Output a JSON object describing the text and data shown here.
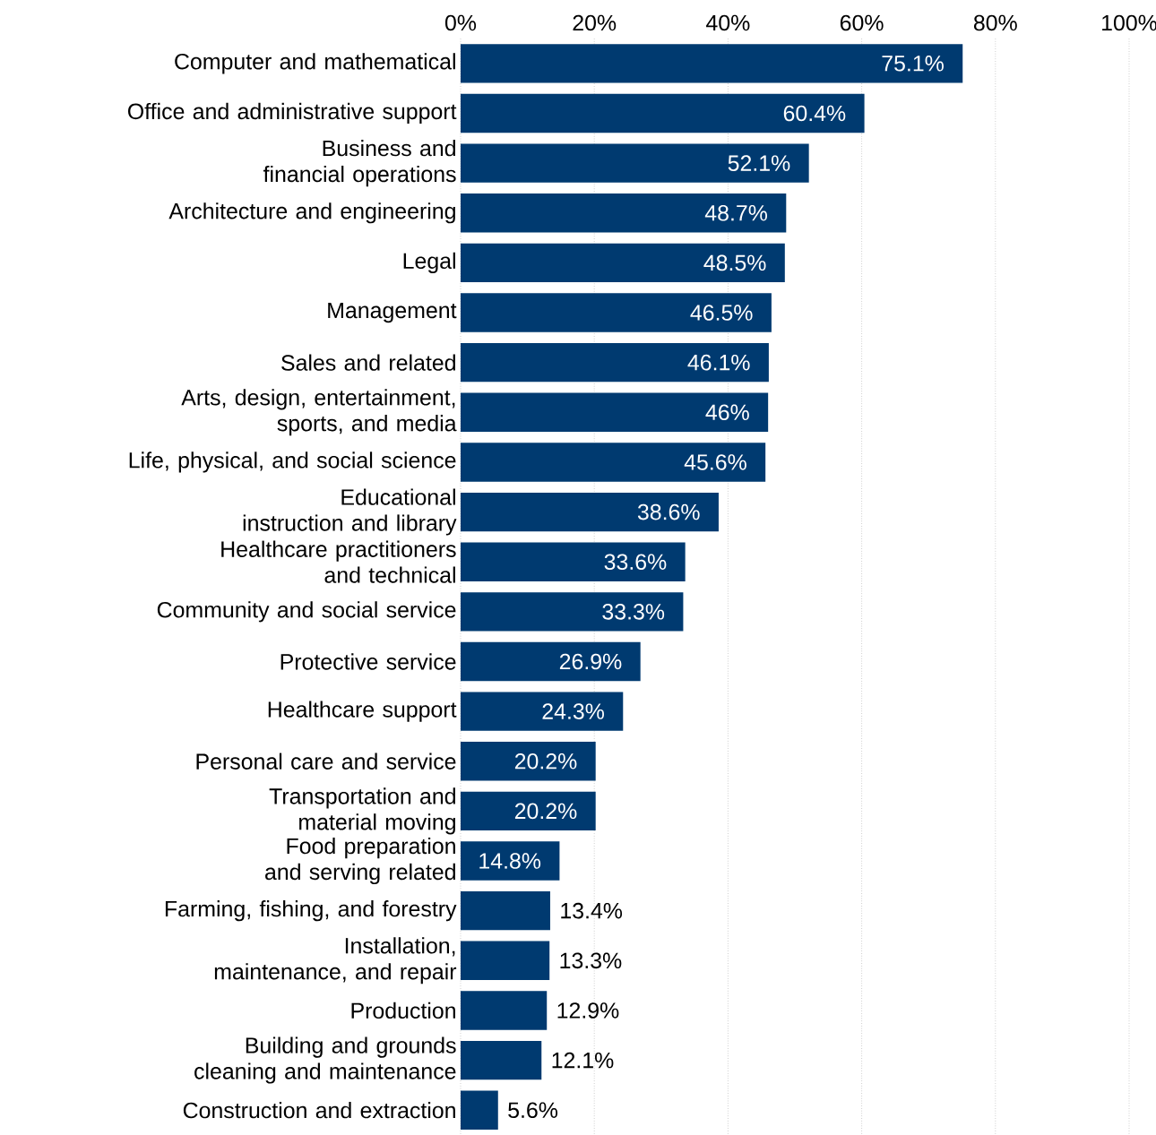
{
  "chart_data": {
    "type": "bar",
    "orientation": "horizontal",
    "categories": [
      "Computer and mathematical",
      "Office and administrative support",
      "Business and financial operations",
      "Architecture and engineering",
      "Legal",
      "Management",
      "Sales and related",
      "Arts, design, entertainment, sports, and media",
      "Life, physical, and social science",
      "Educational instruction and library",
      "Healthcare practitioners and technical",
      "Community and social service",
      "Protective service",
      "Healthcare support",
      "Personal care and service",
      "Transportation and material moving",
      "Food preparation and serving related",
      "Farming, fishing, and forestry",
      "Installation, maintenance, and repair",
      "Production",
      "Building and grounds cleaning and maintenance",
      "Construction and extraction"
    ],
    "values": [
      75.1,
      60.4,
      52.1,
      48.7,
      48.5,
      46.5,
      46.1,
      46,
      45.6,
      38.6,
      33.6,
      33.3,
      26.9,
      24.3,
      20.2,
      20.2,
      14.8,
      13.4,
      13.3,
      12.9,
      12.1,
      5.6
    ],
    "value_labels": [
      "75.1%",
      "60.4%",
      "52.1%",
      "48.7%",
      "48.5%",
      "46.5%",
      "46.1%",
      "46%",
      "45.6%",
      "38.6%",
      "33.6%",
      "33.3%",
      "26.9%",
      "24.3%",
      "20.2%",
      "20.2%",
      "14.8%",
      "13.4%",
      "13.3%",
      "12.9%",
      "12.1%",
      "5.6%"
    ],
    "color": "#003a70",
    "xlim": [
      0,
      100
    ],
    "xticks": [
      {
        "value": 0,
        "label": "0%"
      },
      {
        "value": 20,
        "label": "20%"
      },
      {
        "value": 40,
        "label": "40%"
      },
      {
        "value": 60,
        "label": "60%"
      },
      {
        "value": 80,
        "label": "80%"
      },
      {
        "value": 100,
        "label": "100%"
      }
    ],
    "grid": "x"
  }
}
